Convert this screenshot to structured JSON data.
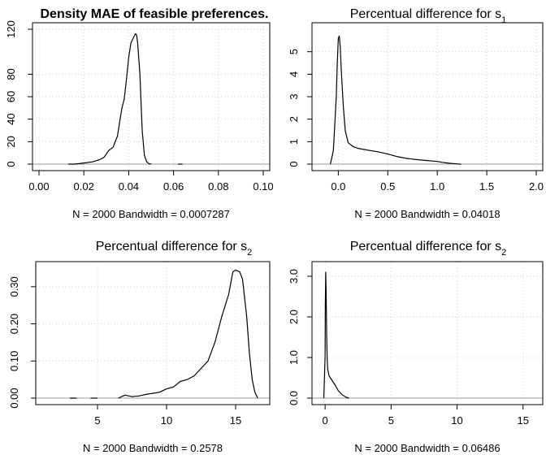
{
  "chart_data": [
    {
      "type": "line",
      "title": "Density MAE of feasible preferences.",
      "xlabel": "N = 2000   Bandwidth = 0.0007287",
      "ylabel": "",
      "xlim": [
        0,
        0.1
      ],
      "ylim": [
        0,
        120
      ],
      "x_ticks": [
        "0.00",
        "0.02",
        "0.04",
        "0.06",
        "0.08",
        "0.10"
      ],
      "y_ticks": [
        "0",
        "20",
        "40",
        "60",
        "80",
        "120"
      ],
      "grid": true,
      "series": [
        {
          "x": [
            0.013,
            0.016,
            0.02,
            0.024,
            0.027,
            0.029,
            0.031,
            0.033,
            0.035,
            0.036,
            0.037,
            0.038,
            0.039,
            0.04,
            0.041,
            0.042,
            0.043,
            0.0435,
            0.044,
            0.045,
            0.046,
            0.047,
            0.048,
            0.049,
            0.05
          ],
          "y": [
            0,
            0,
            1,
            2,
            4,
            6,
            12,
            15,
            25,
            38,
            50,
            58,
            75,
            95,
            108,
            112,
            116,
            115,
            108,
            80,
            30,
            8,
            2,
            0.5,
            0
          ]
        },
        {
          "x": [
            0.062,
            0.064
          ],
          "y": [
            0,
            0
          ]
        }
      ]
    },
    {
      "type": "line",
      "title": "Percentual difference for s",
      "title_sub": "1",
      "xlabel": "N = 2000   Bandwidth = 0.04018",
      "ylabel": "",
      "xlim": [
        -0.2,
        2.0
      ],
      "ylim": [
        0,
        6
      ],
      "x_ticks": [
        "0.0",
        "0.5",
        "1.0",
        "1.5",
        "2.0"
      ],
      "y_ticks": [
        "0",
        "1",
        "2",
        "3",
        "4",
        "5"
      ],
      "grid": true,
      "series": [
        {
          "x": [
            -0.08,
            -0.05,
            -0.02,
            -0.01,
            0.0,
            0.01,
            0.02,
            0.03,
            0.05,
            0.07,
            0.1,
            0.15,
            0.2,
            0.3,
            0.4,
            0.5,
            0.6,
            0.7,
            0.8,
            0.9,
            1.0,
            1.05,
            1.1,
            1.15,
            1.2,
            1.24
          ],
          "y": [
            0,
            0.6,
            3.0,
            4.5,
            5.6,
            5.7,
            5.2,
            4.2,
            2.6,
            1.5,
            0.95,
            0.78,
            0.7,
            0.62,
            0.55,
            0.45,
            0.33,
            0.25,
            0.2,
            0.16,
            0.12,
            0.08,
            0.05,
            0.03,
            0.01,
            0
          ]
        }
      ]
    },
    {
      "type": "line",
      "title": "Percentual difference for s",
      "title_sub": "2",
      "xlabel": "N = 2000   Bandwidth = 0.2578",
      "ylabel": "",
      "xlim": [
        1,
        17
      ],
      "ylim": [
        0,
        0.35
      ],
      "x_ticks": [
        "5",
        "10",
        "15"
      ],
      "y_ticks": [
        "0.00",
        "0.10",
        "0.20",
        "0.30"
      ],
      "grid": true,
      "series": [
        {
          "x": [
            3.0,
            3.5
          ],
          "y": [
            0,
            0
          ]
        },
        {
          "x": [
            4.5,
            5.0
          ],
          "y": [
            0,
            0
          ]
        },
        {
          "x": [
            6.5,
            7.0,
            7.5,
            8.0,
            8.5,
            9.0,
            9.5,
            10.0,
            10.5,
            11.0,
            11.5,
            12.0,
            12.5,
            13.0,
            13.5,
            14.0,
            14.5,
            14.8,
            15.0,
            15.3,
            15.5,
            15.8,
            16.0,
            16.2,
            16.4,
            16.6
          ],
          "y": [
            0,
            0.008,
            0.004,
            0.006,
            0.01,
            0.013,
            0.016,
            0.025,
            0.03,
            0.045,
            0.05,
            0.06,
            0.08,
            0.1,
            0.15,
            0.22,
            0.28,
            0.34,
            0.345,
            0.34,
            0.32,
            0.22,
            0.12,
            0.05,
            0.015,
            0
          ]
        }
      ]
    },
    {
      "type": "line",
      "title": "Percentual difference for s",
      "title_sub": "2",
      "xlabel": "N = 2000   Bandwidth = 0.06486",
      "ylabel": "",
      "xlim": [
        -0.5,
        16
      ],
      "ylim": [
        0,
        3.2
      ],
      "x_ticks": [
        "0",
        "5",
        "10",
        "15"
      ],
      "y_ticks": [
        "0.0",
        "1.0",
        "2.0",
        "3.0"
      ],
      "grid": true,
      "series": [
        {
          "x": [
            -0.1,
            0.0,
            0.02,
            0.05,
            0.08,
            0.12,
            0.15,
            0.2,
            0.3,
            0.5,
            0.8,
            1.0,
            1.3,
            1.6,
            1.8
          ],
          "y": [
            0,
            1.0,
            2.3,
            3.1,
            2.6,
            1.5,
            1.0,
            0.7,
            0.55,
            0.45,
            0.3,
            0.18,
            0.08,
            0.02,
            0
          ]
        }
      ]
    }
  ]
}
